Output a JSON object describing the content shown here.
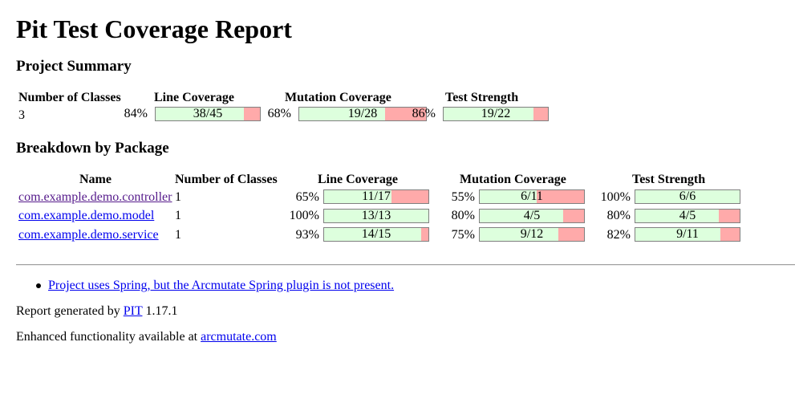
{
  "title": "Pit Test Coverage Report",
  "project_summary": {
    "heading": "Project Summary",
    "headers": [
      "Number of Classes",
      "Line Coverage",
      "Mutation Coverage",
      "Test Strength"
    ],
    "classes": "3",
    "line": {
      "pct": "84%",
      "label": "38/45",
      "fraction": 0.8444
    },
    "mutation": {
      "pct": "68%",
      "label": "19/28",
      "fraction": 0.6786
    },
    "strength": {
      "pct": "86%",
      "label": "19/22",
      "fraction": 0.8636
    }
  },
  "breakdown": {
    "heading": "Breakdown by Package",
    "headers": [
      "Name",
      "Number of Classes",
      "Line Coverage",
      "Mutation Coverage",
      "Test Strength"
    ],
    "rows": [
      {
        "name": "com.example.demo.controller",
        "classes": "1",
        "line": {
          "pct": "65%",
          "label": "11/17",
          "fraction": 0.647
        },
        "mutation": {
          "pct": "55%",
          "label": "6/11",
          "fraction": 0.545
        },
        "strength": {
          "pct": "100%",
          "label": "6/6",
          "fraction": 1.0
        }
      },
      {
        "name": "com.example.demo.model",
        "classes": "1",
        "line": {
          "pct": "100%",
          "label": "13/13",
          "fraction": 1.0
        },
        "mutation": {
          "pct": "80%",
          "label": "4/5",
          "fraction": 0.8
        },
        "strength": {
          "pct": "80%",
          "label": "4/5",
          "fraction": 0.8
        }
      },
      {
        "name": "com.example.demo.service",
        "classes": "1",
        "line": {
          "pct": "93%",
          "label": "14/15",
          "fraction": 0.933
        },
        "mutation": {
          "pct": "75%",
          "label": "9/12",
          "fraction": 0.75
        },
        "strength": {
          "pct": "82%",
          "label": "9/11",
          "fraction": 0.818
        }
      }
    ]
  },
  "notice": "Project uses Spring, but the Arcmutate Spring plugin is not present.",
  "footer": {
    "generated_prefix": "Report generated by",
    "generated_link": "PIT",
    "generated_version": "1.17.1",
    "enhanced_prefix": "Enhanced functionality available at",
    "enhanced_link": "arcmutate.com"
  },
  "colors": {
    "covered": "#ddffdd",
    "uncovered": "#ffaaaa",
    "link": "#0000ee",
    "visited_link": "#551a8b"
  }
}
